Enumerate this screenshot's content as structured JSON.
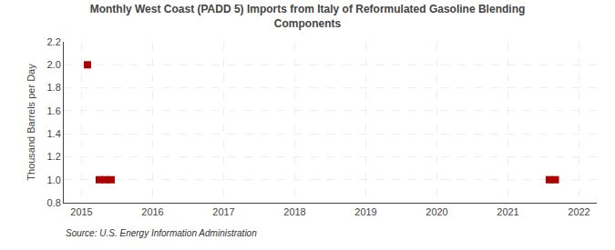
{
  "chart_data": {
    "type": "scatter",
    "title": "Monthly West Coast (PADD 5) Imports from Italy of Reformulated Gasoline Blending\nComponents",
    "ylabel": "Thousand Barrels per Day",
    "source": "Source: U.S. Energy Information Administration",
    "x": [
      2015.083,
      2015.25,
      2015.333,
      2015.417,
      2021.583,
      2021.667
    ],
    "values": [
      2.0,
      1.0,
      1.0,
      1.0,
      1.0,
      1.0
    ],
    "color": "#aa0000",
    "marker": "square",
    "xlim": [
      2014.75,
      2022.25
    ],
    "xticks": [
      2015,
      2016,
      2017,
      2018,
      2019,
      2020,
      2021,
      2022
    ],
    "ylim": [
      0.8,
      2.2
    ],
    "yticks": [
      0.8,
      {
        "value": 1.0,
        "label": "1.0"
      },
      1.2,
      1.4,
      1.6,
      1.8,
      {
        "value": 2.0,
        "label": "2.0"
      },
      2.2
    ],
    "grid": true
  }
}
